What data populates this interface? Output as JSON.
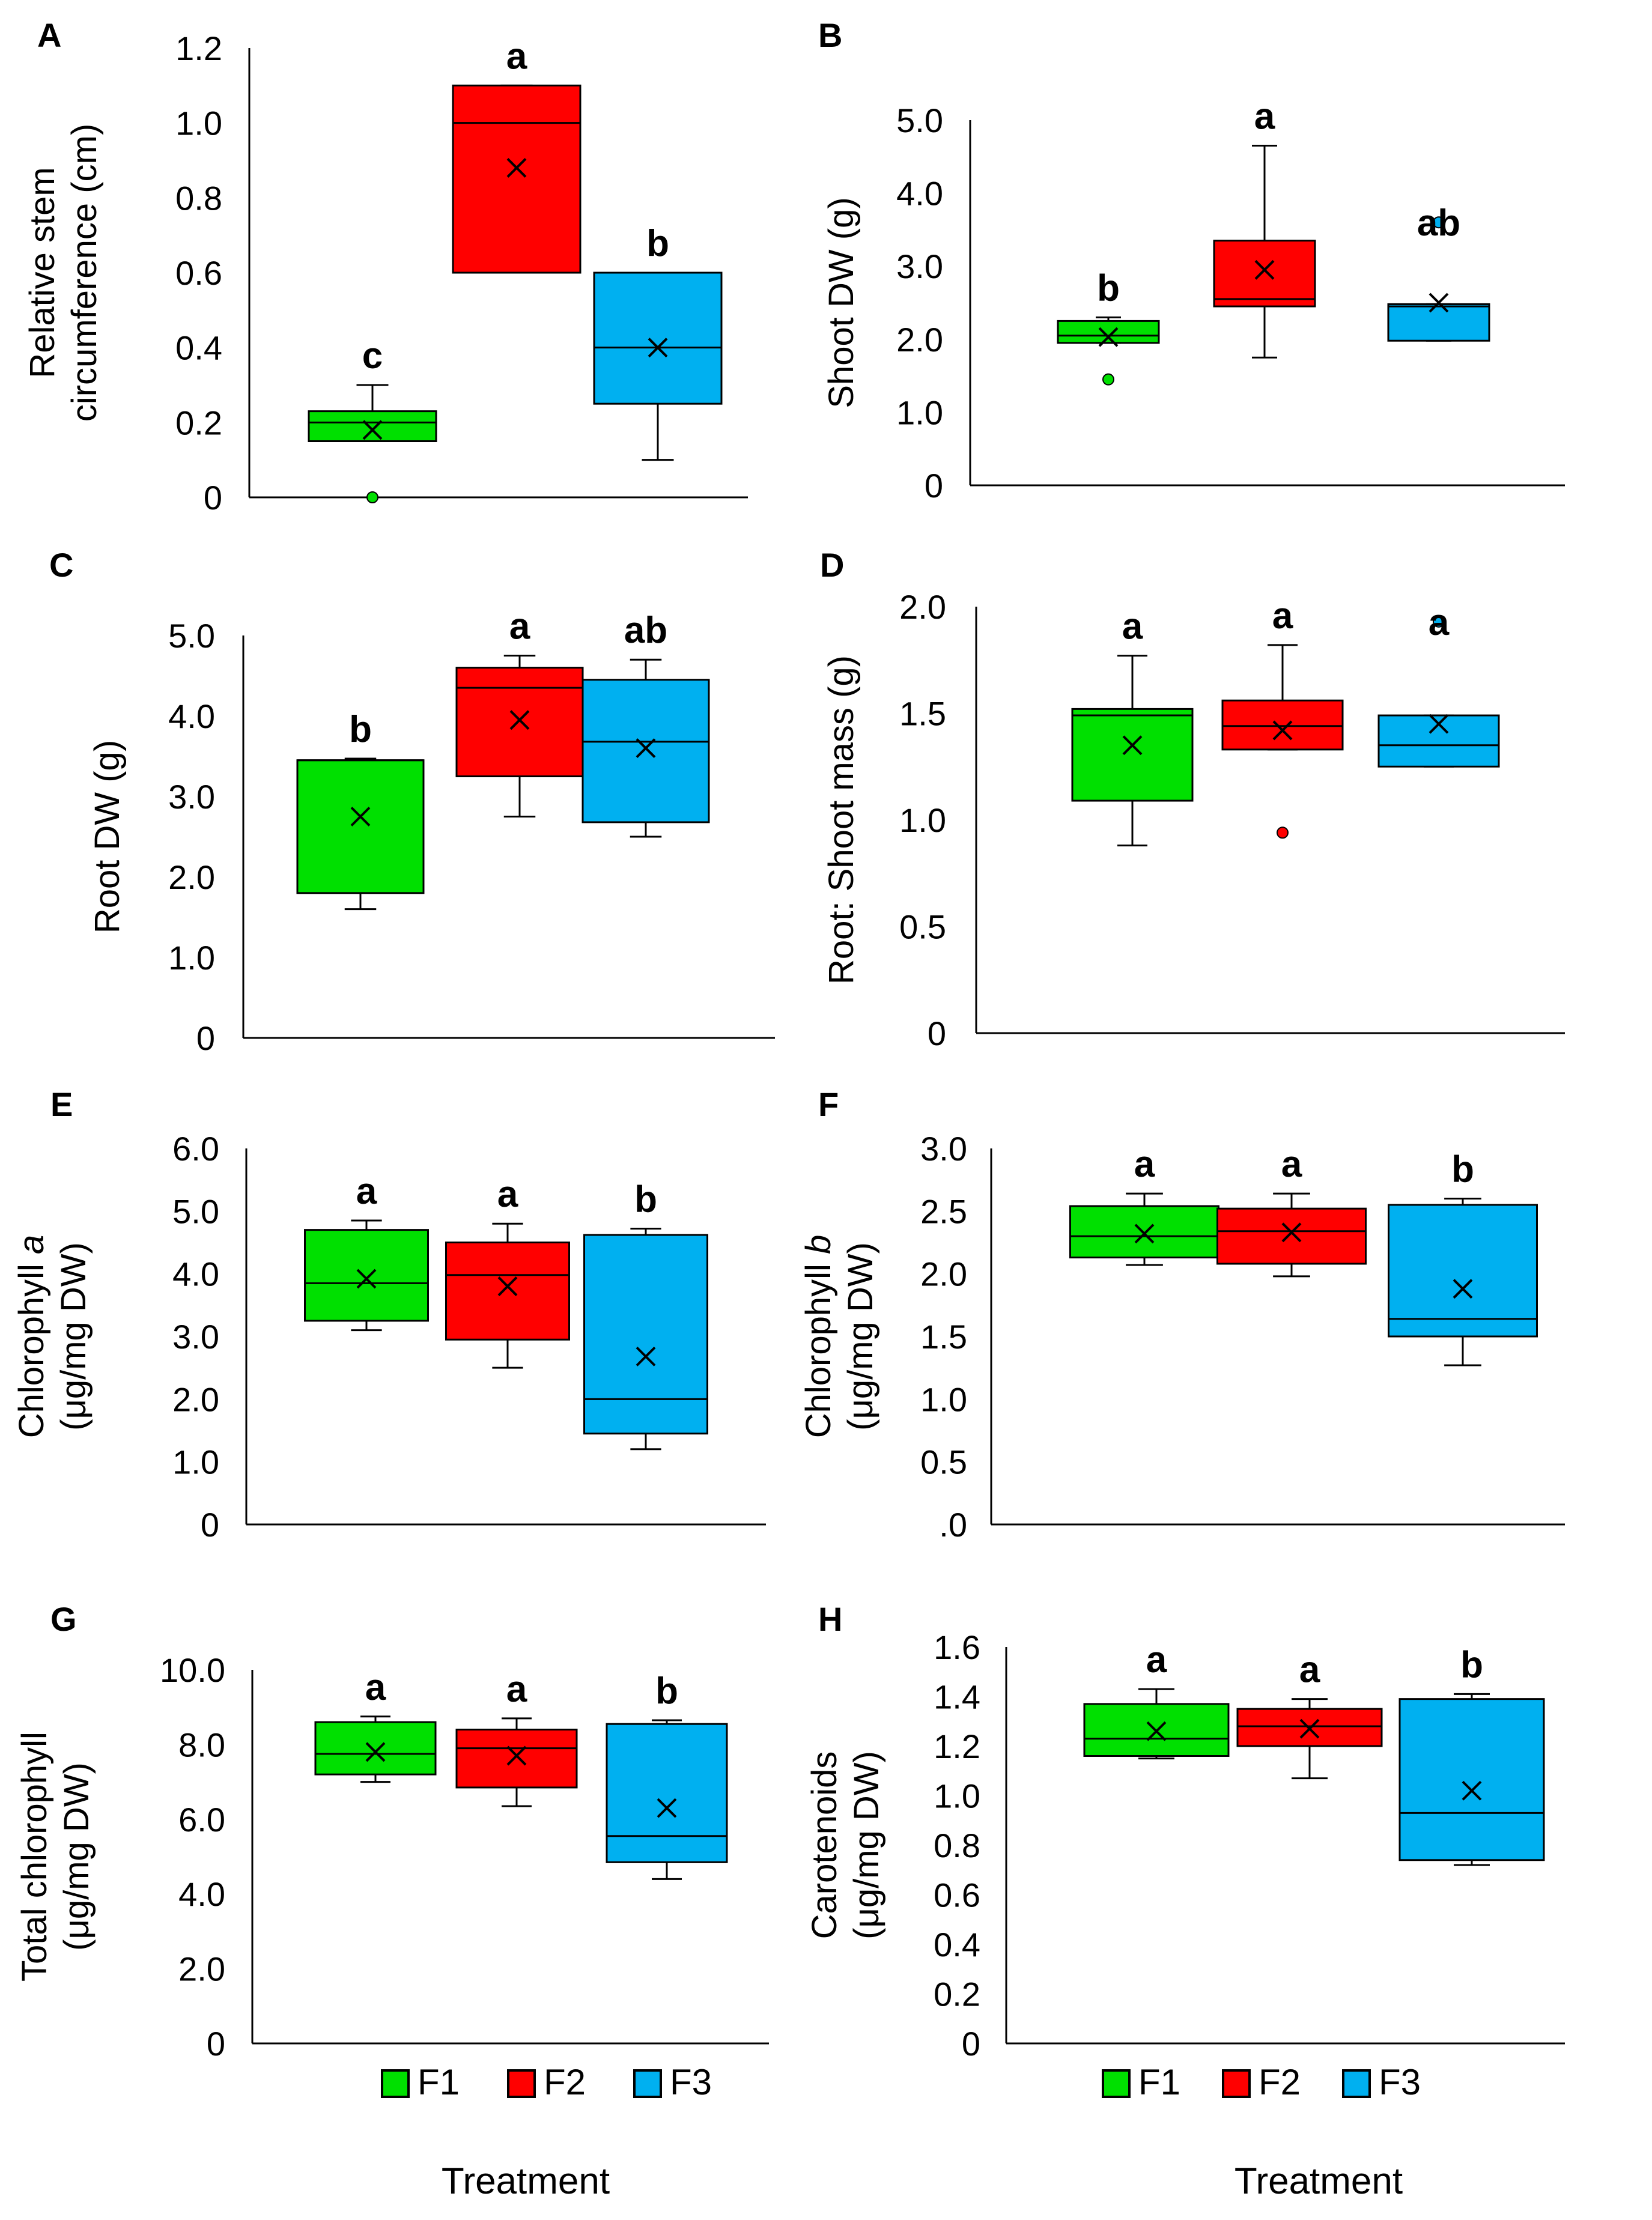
{
  "figure": {
    "legend": {
      "entries": [
        {
          "label": "F1",
          "color": "#00e000"
        },
        {
          "label": "F2",
          "color": "#ff0000"
        },
        {
          "label": "F3",
          "color": "#00b0f0"
        }
      ]
    },
    "x_title": "Treatment"
  },
  "chart_data": [
    {
      "panel": "A",
      "type": "box",
      "ylabel": [
        "Relative stem",
        "circumference (cm)"
      ],
      "ylim": [
        0,
        1.2
      ],
      "yticks": [
        0,
        0.2,
        0.4,
        0.6,
        0.8,
        1.0,
        1.2
      ],
      "ytick_labels": [
        "0",
        "0.2",
        "0.4",
        "0.6",
        "0.8",
        "1.0",
        "1.2"
      ],
      "categories": [
        "F1",
        "F2",
        "F3"
      ],
      "series": [
        {
          "name": "F1",
          "min": 0.15,
          "q1": 0.15,
          "median": 0.2,
          "q3": 0.23,
          "max": 0.3,
          "mean": 0.18,
          "outliers": [
            0.0
          ],
          "letter": "c"
        },
        {
          "name": "F2",
          "min": 0.6,
          "q1": 0.6,
          "median": 1.0,
          "q3": 1.1,
          "max": 1.1,
          "mean": 0.88,
          "outliers": [],
          "letter": "a"
        },
        {
          "name": "F3",
          "min": 0.1,
          "q1": 0.25,
          "median": 0.4,
          "q3": 0.6,
          "max": 0.6,
          "mean": 0.4,
          "outliers": [],
          "letter": "b"
        }
      ]
    },
    {
      "panel": "B",
      "type": "box",
      "ylabel": [
        "Shoot DW (g)"
      ],
      "ylim": [
        0,
        5.0
      ],
      "yticks": [
        0,
        1,
        2,
        3,
        4,
        5
      ],
      "ytick_labels": [
        "0",
        "1.0",
        "2.0",
        "3.0",
        "4.0",
        "5.0"
      ],
      "categories": [
        "F1",
        "F2",
        "F3"
      ],
      "series": [
        {
          "name": "F1",
          "min": 1.95,
          "q1": 1.95,
          "median": 2.05,
          "q3": 2.25,
          "max": 2.3,
          "mean": 2.03,
          "outliers": [
            1.45
          ],
          "letter": "b"
        },
        {
          "name": "F2",
          "min": 1.75,
          "q1": 2.45,
          "median": 2.55,
          "q3": 3.35,
          "max": 4.65,
          "mean": 2.95,
          "outliers": [],
          "letter": "a"
        },
        {
          "name": "F3",
          "min": 1.98,
          "q1": 1.98,
          "median": 2.45,
          "q3": 2.48,
          "max": 2.48,
          "mean": 2.5,
          "outliers": [
            3.6
          ],
          "letter": "ab"
        }
      ]
    },
    {
      "panel": "C",
      "type": "box",
      "ylabel": [
        "Root DW (g)"
      ],
      "ylim": [
        0,
        5.0
      ],
      "yticks": [
        0,
        1,
        2,
        3,
        4,
        5
      ],
      "ytick_labels": [
        "0",
        "1.0",
        "2.0",
        "3.0",
        "4.0",
        "5.0"
      ],
      "categories": [
        "F1",
        "F2",
        "F3"
      ],
      "series": [
        {
          "name": "F1",
          "min": 1.6,
          "q1": 1.8,
          "median": 3.45,
          "q3": 3.45,
          "max": 3.47,
          "mean": 2.75,
          "outliers": [],
          "letter": "b"
        },
        {
          "name": "F2",
          "min": 2.75,
          "q1": 3.25,
          "median": 4.35,
          "q3": 4.6,
          "max": 4.75,
          "mean": 3.95,
          "outliers": [],
          "letter": "a"
        },
        {
          "name": "F3",
          "min": 2.5,
          "q1": 2.68,
          "median": 3.68,
          "q3": 4.45,
          "max": 4.7,
          "mean": 3.6,
          "outliers": [],
          "letter": "ab"
        }
      ]
    },
    {
      "panel": "D",
      "type": "box",
      "ylabel": [
        "Root: Shoot mass (g)"
      ],
      "ylim": [
        0,
        2.0
      ],
      "yticks": [
        0,
        0.5,
        1.0,
        1.5,
        2.0
      ],
      "ytick_labels": [
        "0",
        "0.5",
        "1.0",
        "1.5",
        "2.0"
      ],
      "categories": [
        "F1",
        "F2",
        "F3"
      ],
      "series": [
        {
          "name": "F1",
          "min": 0.88,
          "q1": 1.09,
          "median": 1.49,
          "q3": 1.52,
          "max": 1.77,
          "mean": 1.35,
          "outliers": [],
          "letter": "a"
        },
        {
          "name": "F2",
          "min": 1.33,
          "q1": 1.33,
          "median": 1.44,
          "q3": 1.56,
          "max": 1.82,
          "mean": 1.42,
          "outliers": [
            0.94
          ],
          "letter": "a"
        },
        {
          "name": "F3",
          "min": 1.25,
          "q1": 1.25,
          "median": 1.35,
          "q3": 1.49,
          "max": 1.49,
          "mean": 1.45,
          "outliers": [
            1.93
          ],
          "letter": "a"
        }
      ]
    },
    {
      "panel": "E",
      "type": "box",
      "ylabel": [
        "Chlorophyll a",
        "(μg/mg DW)"
      ],
      "ylim": [
        0,
        6.0
      ],
      "yticks": [
        0,
        1,
        2,
        3,
        4,
        5,
        6
      ],
      "ytick_labels": [
        "0",
        "1.0",
        "2.0",
        "3.0",
        "4.0",
        "5.0",
        "6.0"
      ],
      "categories": [
        "F1",
        "F2",
        "F3"
      ],
      "series": [
        {
          "name": "F1",
          "min": 3.1,
          "q1": 3.25,
          "median": 3.85,
          "q3": 4.7,
          "max": 4.85,
          "mean": 3.92,
          "outliers": [],
          "letter": "a"
        },
        {
          "name": "F2",
          "min": 2.5,
          "q1": 2.95,
          "median": 3.98,
          "q3": 4.5,
          "max": 4.8,
          "mean": 3.8,
          "outliers": [],
          "letter": "a"
        },
        {
          "name": "F3",
          "min": 1.2,
          "q1": 1.45,
          "median": 2.0,
          "q3": 4.62,
          "max": 4.72,
          "mean": 2.68,
          "outliers": [],
          "letter": "b"
        }
      ]
    },
    {
      "panel": "F",
      "type": "box",
      "ylabel": [
        "Chlorophyll b",
        "(μg/mg DW)"
      ],
      "ylim": [
        0,
        3.0
      ],
      "yticks": [
        0,
        0.5,
        1.0,
        1.5,
        2.0,
        2.5,
        3.0
      ],
      "ytick_labels": [
        ".0",
        "0.5",
        "1.0",
        "1.5",
        "2.0",
        "2.5",
        "3.0"
      ],
      "categories": [
        "F1",
        "F2",
        "F3"
      ],
      "series": [
        {
          "name": "F1",
          "min": 2.07,
          "q1": 2.13,
          "median": 2.3,
          "q3": 2.54,
          "max": 2.64,
          "mean": 2.32,
          "outliers": [],
          "letter": "a"
        },
        {
          "name": "F2",
          "min": 1.98,
          "q1": 2.08,
          "median": 2.34,
          "q3": 2.52,
          "max": 2.64,
          "mean": 2.33,
          "outliers": [],
          "letter": "a"
        },
        {
          "name": "F3",
          "min": 1.27,
          "q1": 1.5,
          "median": 1.64,
          "q3": 2.55,
          "max": 2.6,
          "mean": 1.88,
          "outliers": [],
          "letter": "b"
        }
      ]
    },
    {
      "panel": "G",
      "type": "box",
      "ylabel": [
        "Total chlorophyll",
        "(μg/mg DW)"
      ],
      "ylim": [
        0,
        10.0
      ],
      "yticks": [
        0,
        2,
        4,
        6,
        8,
        10
      ],
      "ytick_labels": [
        "0",
        "2.0",
        "4.0",
        "6.0",
        "8.0",
        "10.0"
      ],
      "categories": [
        "F1",
        "F2",
        "F3"
      ],
      "series": [
        {
          "name": "F1",
          "min": 7.0,
          "q1": 7.2,
          "median": 7.75,
          "q3": 8.6,
          "max": 8.75,
          "mean": 7.8,
          "outliers": [],
          "letter": "a"
        },
        {
          "name": "F2",
          "min": 6.35,
          "q1": 6.85,
          "median": 7.9,
          "q3": 8.4,
          "max": 8.7,
          "mean": 7.7,
          "outliers": [],
          "letter": "a"
        },
        {
          "name": "F3",
          "min": 4.4,
          "q1": 4.85,
          "median": 5.55,
          "q3": 8.55,
          "max": 8.65,
          "mean": 6.3,
          "outliers": [],
          "letter": "b"
        }
      ]
    },
    {
      "panel": "H",
      "type": "box",
      "ylabel": [
        "Carotenoids",
        "(μg/mg DW)"
      ],
      "ylim": [
        0,
        1.6
      ],
      "yticks": [
        0,
        0.2,
        0.4,
        0.6,
        0.8,
        1.0,
        1.2,
        1.4,
        1.6
      ],
      "ytick_labels": [
        "0",
        "0.2",
        "0.4",
        "0.6",
        "0.8",
        "1.0",
        "1.2",
        "1.4",
        "1.6"
      ],
      "categories": [
        "F1",
        "F2",
        "F3"
      ],
      "series": [
        {
          "name": "F1",
          "min": 1.15,
          "q1": 1.16,
          "median": 1.23,
          "q3": 1.37,
          "max": 1.43,
          "mean": 1.26,
          "outliers": [],
          "letter": "a"
        },
        {
          "name": "F2",
          "min": 1.07,
          "q1": 1.2,
          "median": 1.28,
          "q3": 1.35,
          "max": 1.39,
          "mean": 1.27,
          "outliers": [],
          "letter": "a"
        },
        {
          "name": "F3",
          "min": 0.72,
          "q1": 0.74,
          "median": 0.93,
          "q3": 1.39,
          "max": 1.41,
          "mean": 1.02,
          "outliers": [],
          "letter": "b"
        }
      ]
    }
  ]
}
